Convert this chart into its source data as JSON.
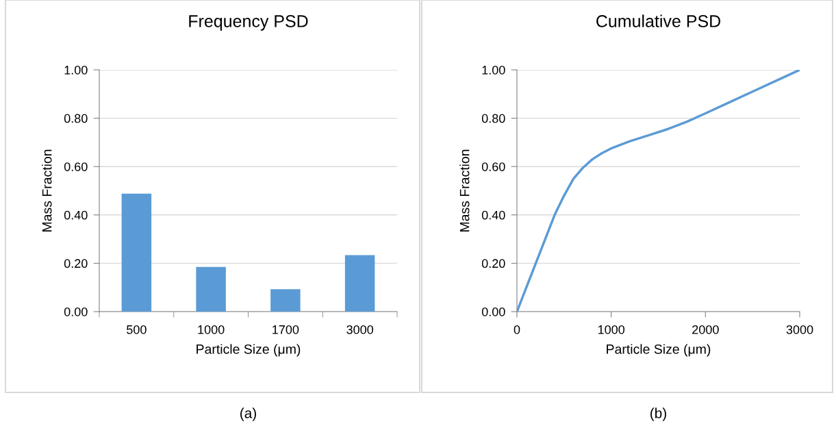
{
  "chart_data": [
    {
      "type": "bar",
      "title": "Frequency PSD",
      "xlabel": "Particle Size (μm)",
      "ylabel": "Mass Fraction",
      "categories": [
        "500",
        "1000",
        "1700",
        "3000"
      ],
      "values": [
        0.488,
        0.185,
        0.093,
        0.234
      ],
      "color": "#5b9bd5",
      "ylim": [
        0,
        1
      ],
      "yticks": [
        {
          "value": 0,
          "label": "0.00"
        },
        {
          "value": 0.2,
          "label": "0.20"
        },
        {
          "value": 0.4,
          "label": "0.40"
        },
        {
          "value": 0.6,
          "label": "0.60"
        },
        {
          "value": 0.8,
          "label": "0.80"
        },
        {
          "value": 1,
          "label": "1.00"
        }
      ],
      "grid": "y",
      "annotations": [
        "(a)"
      ]
    },
    {
      "type": "line",
      "title": "Cumulative PSD",
      "xlabel": "Particle Size (μm)",
      "ylabel": "Mass Fraction",
      "x": [
        0,
        100,
        200,
        300,
        400,
        500,
        600,
        700,
        800,
        900,
        1000,
        1200,
        1400,
        1600,
        1800,
        2000,
        2250,
        2500,
        2750,
        3000
      ],
      "values": [
        0,
        0.1,
        0.2,
        0.3,
        0.4,
        0.48,
        0.55,
        0.595,
        0.63,
        0.655,
        0.675,
        0.705,
        0.73,
        0.755,
        0.785,
        0.82,
        0.865,
        0.91,
        0.955,
        1.0
      ],
      "color": "#5b9bd5",
      "xlim": [
        0,
        3000
      ],
      "xticks": [
        0,
        1000,
        2000,
        3000
      ],
      "ylim": [
        0,
        1
      ],
      "yticks": [
        {
          "value": 0,
          "label": "0.00"
        },
        {
          "value": 0.2,
          "label": "0.20"
        },
        {
          "value": 0.4,
          "label": "0.40"
        },
        {
          "value": 0.6,
          "label": "0.60"
        },
        {
          "value": 0.8,
          "label": "0.80"
        },
        {
          "value": 1,
          "label": "1.00"
        }
      ],
      "grid": "y",
      "marker": "none",
      "line_style": "solid",
      "annotations": [
        "(b)"
      ]
    }
  ]
}
